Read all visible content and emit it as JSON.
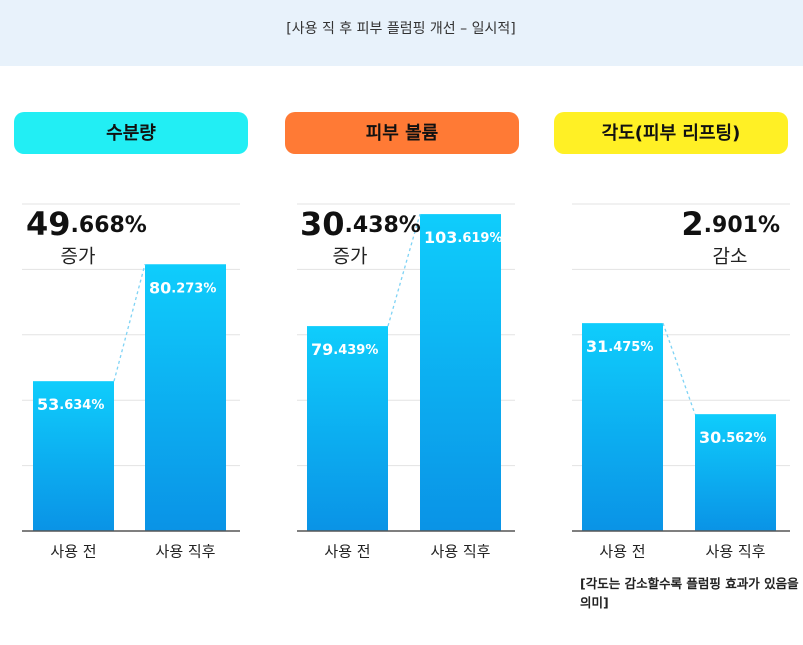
{
  "header": {
    "title": "[사용 직 후 피부 플럼핑 개선 – 일시적]"
  },
  "chart_data": [
    {
      "type": "bar",
      "title": "수분량",
      "title_color": "#22eef4",
      "categories": [
        "사용 전",
        "사용 직후"
      ],
      "values": [
        53.634,
        80.273
      ],
      "value_labels": [
        "53.634%",
        "80.273%"
      ],
      "change_label": "49.668%",
      "change_word": "증가",
      "ylim": [
        19.5,
        94
      ],
      "grid": true
    },
    {
      "type": "bar",
      "title": "피부 볼륨",
      "title_color": "#ff7a35",
      "categories": [
        "사용 전",
        "사용 직후"
      ],
      "values": [
        79.439,
        103.619
      ],
      "value_labels": [
        "79.439%",
        "103.619%"
      ],
      "change_label": "30.438%",
      "change_word": "증가",
      "ylim": [
        35.2,
        105.8
      ],
      "grid": true
    },
    {
      "type": "bar",
      "title": "각도(피부 리프팅)",
      "title_color": "#fff025",
      "categories": [
        "사용 전",
        "사용 직후"
      ],
      "values": [
        31.475,
        30.562
      ],
      "value_labels": [
        "31.475%",
        "30.562%"
      ],
      "change_label": "2.901%",
      "change_word": "감소",
      "ylim": [
        29.39,
        32.67
      ],
      "grid": true,
      "note": "[각도는 감소할수록 플럼핑 효과가 있음을 의미]"
    }
  ]
}
